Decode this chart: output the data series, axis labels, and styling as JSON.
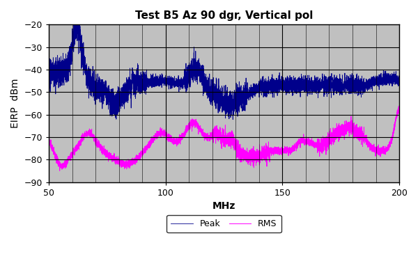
{
  "title": "Test B5 Az 90 dgr, Vertical pol",
  "xlabel": "MHz",
  "ylabel": "EIRP  dBm",
  "xlim": [
    50,
    200
  ],
  "ylim": [
    -90,
    -20
  ],
  "yticks": [
    -90,
    -80,
    -70,
    -60,
    -50,
    -40,
    -30,
    -20
  ],
  "xticks": [
    50,
    100,
    150,
    200
  ],
  "peak_color": "#00008B",
  "rms_color": "#FF00FF",
  "bg_color": "#C0C0C0",
  "grid_color": "#000000",
  "fig_bg": "#FFFFFF",
  "legend_labels": [
    "Peak",
    "RMS"
  ],
  "title_fontsize": 11,
  "label_fontsize": 10,
  "tick_fontsize": 9
}
